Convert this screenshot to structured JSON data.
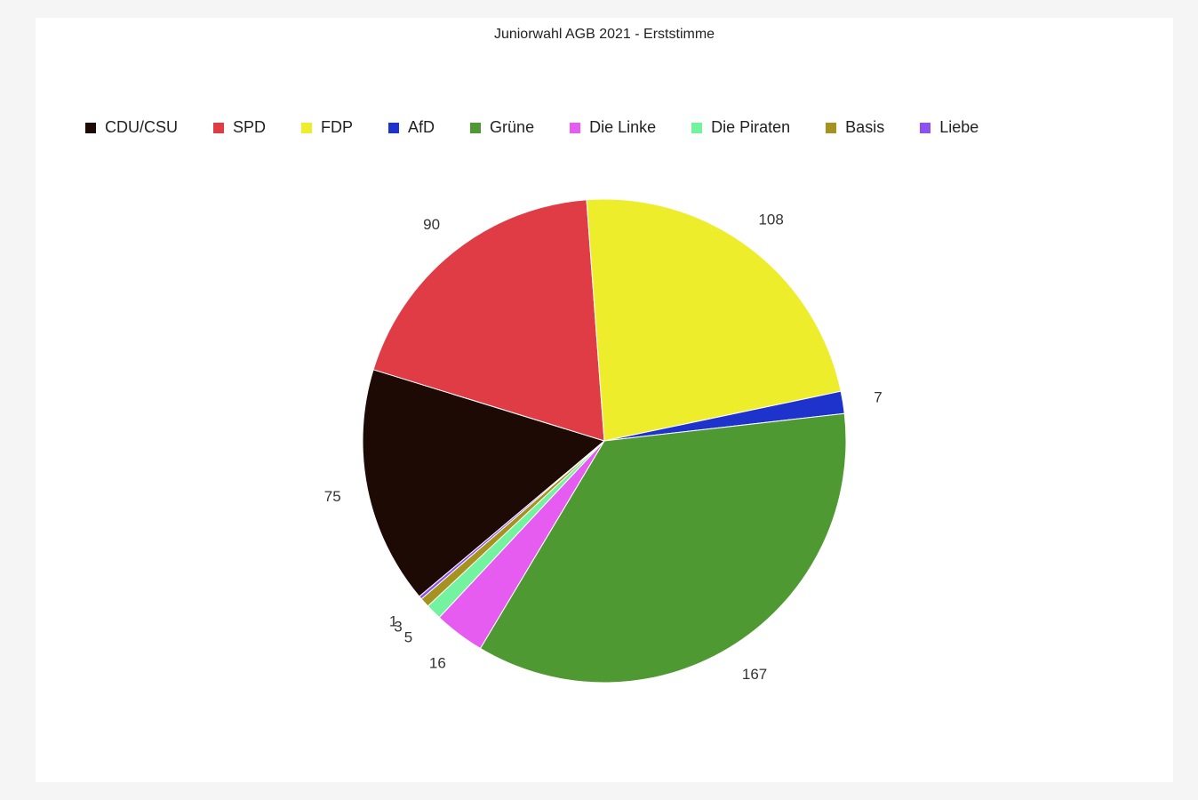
{
  "chart_data": {
    "type": "pie",
    "title": "Juniorwahl AGB 2021 - Erststimme",
    "legend_position": "top-left",
    "categories": [
      "CDU/CSU",
      "SPD",
      "FDP",
      "AfD",
      "Grüne",
      "Die Linke",
      "Die Piraten",
      "Basis",
      "Liebe"
    ],
    "values": [
      75,
      90,
      108,
      7,
      167,
      16,
      5,
      3,
      1
    ],
    "colors": [
      "#1e0a05",
      "#e03c45",
      "#eded2b",
      "#1e32cc",
      "#4e9932",
      "#e65cf0",
      "#73f2a0",
      "#a6931f",
      "#8c52f0"
    ]
  }
}
